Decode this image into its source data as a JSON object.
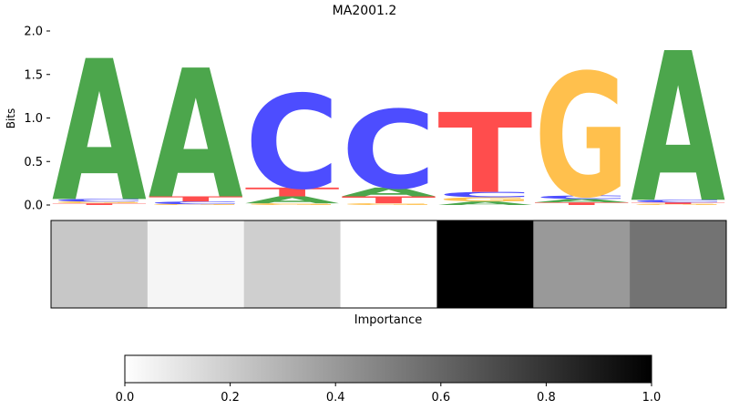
{
  "chart_data": [
    {
      "type": "sequence_logo",
      "title": "MA2001.2",
      "ylabel": "Bits",
      "xlabel": "",
      "ylim": [
        0,
        2.0
      ],
      "yticks": [
        "0.0",
        "0.5",
        "1.0",
        "1.5",
        "2.0"
      ],
      "colors": {
        "A": "#4ca64c",
        "C": "#4d4dff",
        "G": "#ffc04d",
        "T": "#ff4d4d"
      },
      "positions": [
        {
          "letters": [
            {
              "base": "T",
              "bits": 0.02
            },
            {
              "base": "G",
              "bits": 0.02
            },
            {
              "base": "C",
              "bits": 0.03
            },
            {
              "base": "A",
              "bits": 1.62
            }
          ]
        },
        {
          "letters": [
            {
              "base": "G",
              "bits": 0.01
            },
            {
              "base": "C",
              "bits": 0.03
            },
            {
              "base": "T",
              "bits": 0.06
            },
            {
              "base": "A",
              "bits": 1.48
            }
          ]
        },
        {
          "letters": [
            {
              "base": "G",
              "bits": 0.02
            },
            {
              "base": "A",
              "bits": 0.08
            },
            {
              "base": "T",
              "bits": 0.1
            },
            {
              "base": "C",
              "bits": 1.08
            }
          ]
        },
        {
          "letters": [
            {
              "base": "G",
              "bits": 0.02
            },
            {
              "base": "T",
              "bits": 0.08
            },
            {
              "base": "A",
              "bits": 0.1
            },
            {
              "base": "C",
              "bits": 0.9
            }
          ]
        },
        {
          "letters": [
            {
              "base": "A",
              "bits": 0.04
            },
            {
              "base": "G",
              "bits": 0.05
            },
            {
              "base": "C",
              "bits": 0.06
            },
            {
              "base": "T",
              "bits": 0.92
            }
          ]
        },
        {
          "letters": [
            {
              "base": "T",
              "bits": 0.03
            },
            {
              "base": "A",
              "bits": 0.04
            },
            {
              "base": "C",
              "bits": 0.04
            },
            {
              "base": "G",
              "bits": 1.42
            }
          ]
        },
        {
          "letters": [
            {
              "base": "G",
              "bits": 0.01
            },
            {
              "base": "T",
              "bits": 0.02
            },
            {
              "base": "C",
              "bits": 0.03
            },
            {
              "base": "A",
              "bits": 1.72
            }
          ]
        }
      ]
    },
    {
      "type": "heatmap",
      "xlabel": "Importance",
      "cmap": "gray_r",
      "values": [
        0.22,
        0.04,
        0.19,
        0.0,
        1.0,
        0.4,
        0.55
      ]
    },
    {
      "type": "colorbar",
      "range": [
        0.0,
        1.0
      ],
      "ticks": [
        "0.0",
        "0.2",
        "0.4",
        "0.6",
        "0.8",
        "1.0"
      ],
      "cmap": "gray_r"
    }
  ]
}
